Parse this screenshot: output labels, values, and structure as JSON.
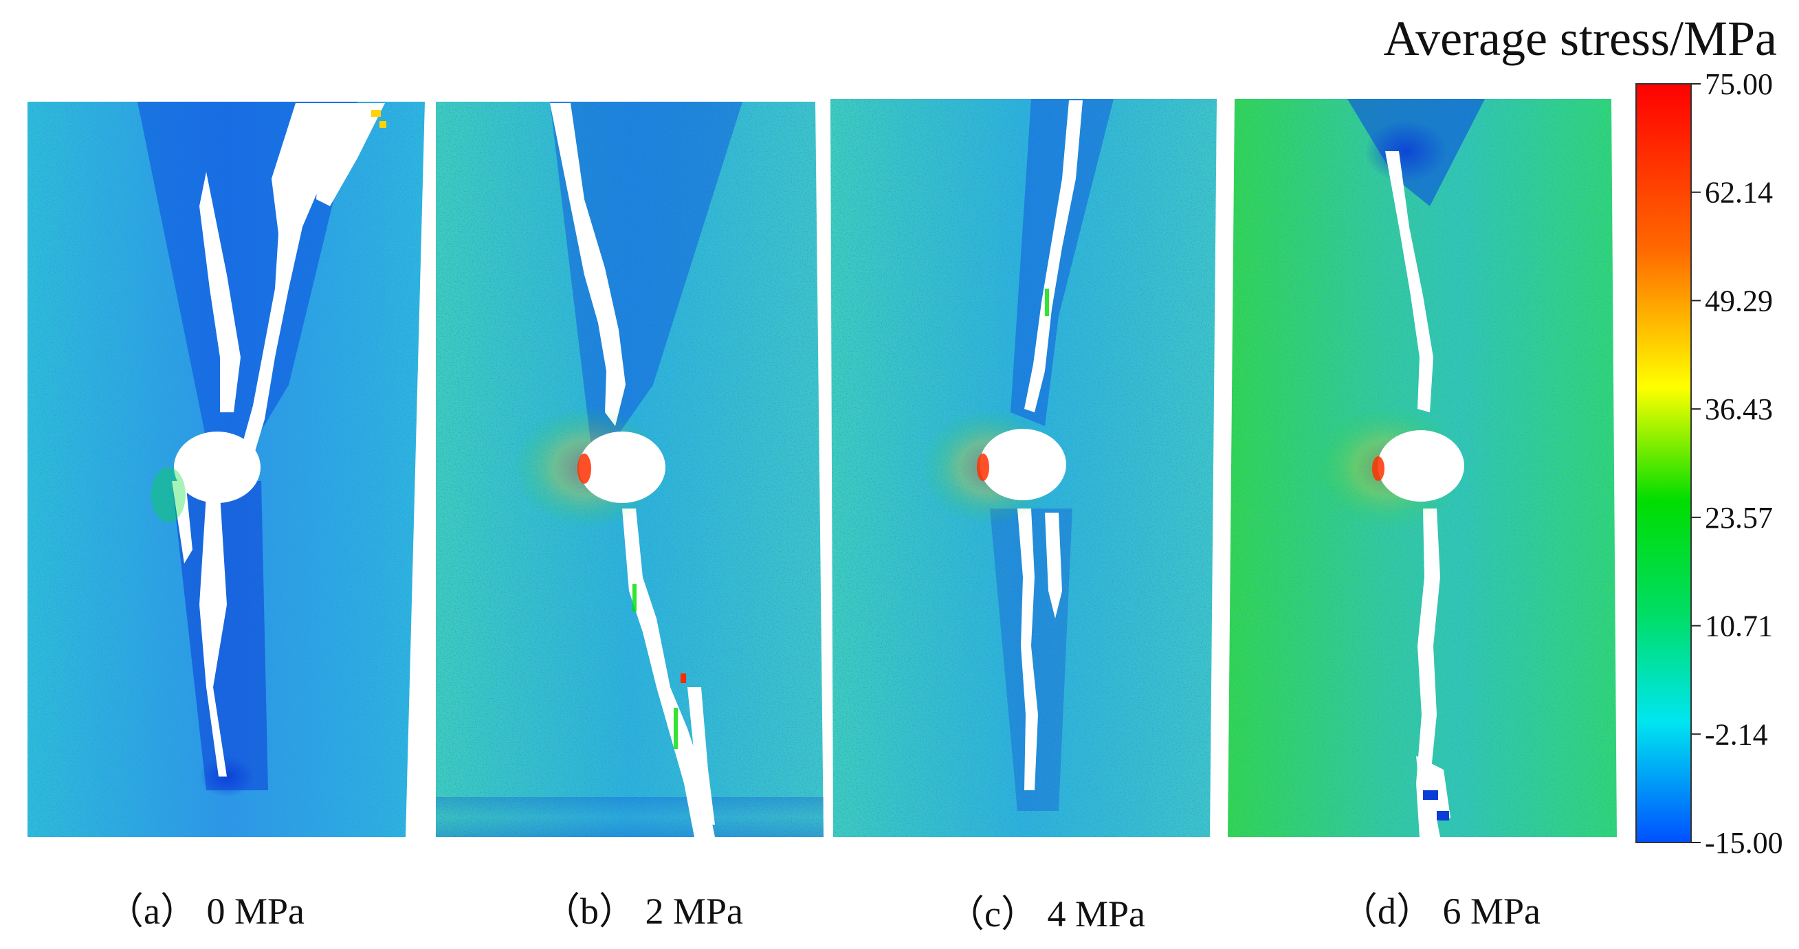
{
  "legend": {
    "title": "Average stress/MPa",
    "ticks": [
      "75.00",
      "62.14",
      "49.29",
      "36.43",
      "23.57",
      "10.71",
      "-2.14",
      "-15.00"
    ],
    "colors": [
      "#ff0000",
      "#ff7a00",
      "#ffff00",
      "#00dd00",
      "#00e6e6",
      "#0050ff"
    ]
  },
  "panels": [
    {
      "caption": "（a） 0 MPa",
      "field": "blue"
    },
    {
      "caption": "（b） 2 MPa",
      "field": "teal"
    },
    {
      "caption": "（c） 4 MPa",
      "field": "teal"
    },
    {
      "caption": "（d） 6 MPa",
      "field": "green"
    }
  ],
  "colors": {
    "field_blue": "#2aa8e8",
    "field_teal": "#34c8c8",
    "field_green": "#2ed46a",
    "low_stress": "#0a3cd8",
    "crack": "#ffffff"
  }
}
